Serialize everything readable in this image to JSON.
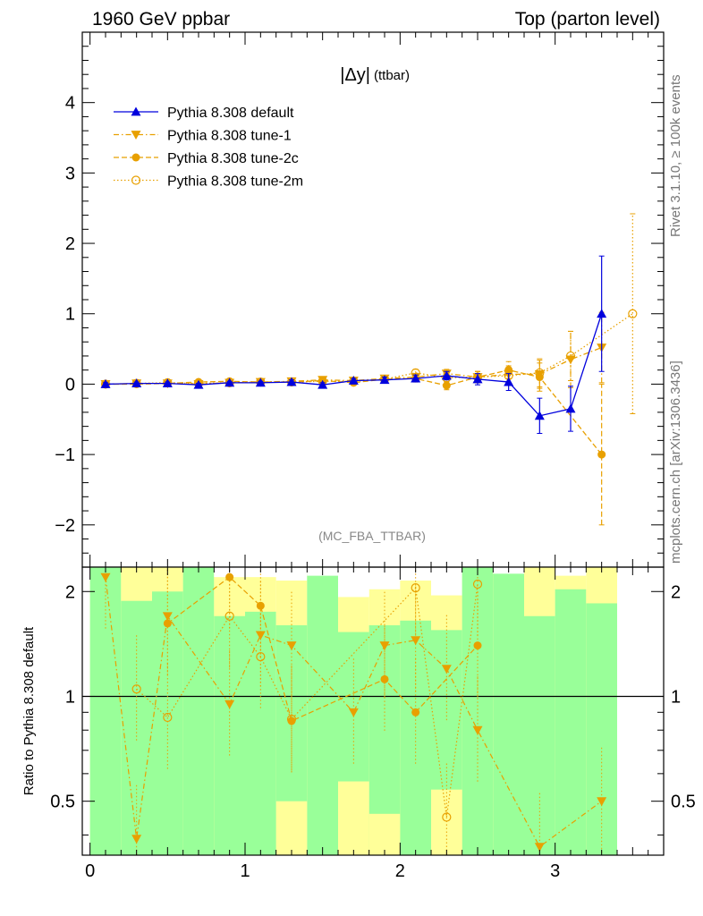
{
  "header": {
    "left": "1960 GeV ppbar",
    "right": "Top (parton level)"
  },
  "side": {
    "rivet": "Rivet 3.1.10, ≥ 100k events",
    "mcplots": "mcplots.cern.ch [arXiv:1306.3436]"
  },
  "analysis_tag": "(MC_FBA_TTBAR)",
  "plot_title": {
    "main": "|Δy|",
    "sub": "(ttbar)"
  },
  "colors": {
    "default": "#0000dd",
    "tunes": "#e8a000",
    "band_green": "#99ff99",
    "band_yellow": "#ffff99"
  },
  "chart_data": [
    {
      "type": "line",
      "panel": "main",
      "xlim": [
        -0.05,
        3.7
      ],
      "ylim": [
        -2.6,
        5.0
      ],
      "yticks": [
        -2,
        -1,
        0,
        1,
        2,
        3,
        4
      ],
      "ytick_labels": [
        "−2",
        "−1",
        "0",
        "1",
        "2",
        "3",
        "4"
      ],
      "legend_position": "top-left",
      "series": [
        {
          "name": "Pythia 8.308 default",
          "style": "solid",
          "marker": "triangle-up",
          "x": [
            0.1,
            0.3,
            0.5,
            0.7,
            0.9,
            1.1,
            1.3,
            1.5,
            1.7,
            1.9,
            2.1,
            2.3,
            2.5,
            2.7,
            2.9,
            3.1,
            3.3
          ],
          "y": [
            0.0,
            0.01,
            0.01,
            -0.01,
            0.02,
            0.02,
            0.03,
            -0.01,
            0.05,
            0.06,
            0.08,
            0.12,
            0.07,
            0.03,
            -0.45,
            -0.35,
            1.0
          ],
          "err": [
            0.02,
            0.02,
            0.02,
            0.02,
            0.02,
            0.02,
            0.03,
            0.03,
            0.03,
            0.04,
            0.05,
            0.06,
            0.08,
            0.12,
            0.25,
            0.32,
            0.82
          ]
        },
        {
          "name": "Pythia 8.308 tune-1",
          "style": "dashdot",
          "marker": "triangle-down",
          "x": [
            0.1,
            0.3,
            0.5,
            0.7,
            0.9,
            1.1,
            1.3,
            1.5,
            1.7,
            1.9,
            2.1,
            2.3,
            2.5,
            2.7,
            2.9,
            3.1,
            3.3
          ],
          "y": [
            0.0,
            0.01,
            0.01,
            0.0,
            0.02,
            0.03,
            0.04,
            0.06,
            0.05,
            0.08,
            0.1,
            0.15,
            0.1,
            0.14,
            0.14,
            0.35,
            0.52
          ],
          "err": [
            0.02,
            0.02,
            0.02,
            0.02,
            0.02,
            0.02,
            0.03,
            0.03,
            0.03,
            0.04,
            0.05,
            0.06,
            0.08,
            0.12,
            0.2,
            0.4,
            0.5
          ]
        },
        {
          "name": "Pythia 8.308 tune-2c",
          "style": "dashed",
          "marker": "circle",
          "x": [
            0.1,
            0.3,
            0.5,
            0.7,
            0.9,
            1.1,
            1.3,
            1.5,
            1.7,
            1.9,
            2.1,
            2.3,
            2.5,
            2.7,
            2.9,
            3.3
          ],
          "y": [
            0.0,
            0.0,
            0.01,
            0.03,
            0.04,
            0.03,
            0.03,
            0.05,
            0.02,
            0.07,
            0.08,
            -0.02,
            0.1,
            0.2,
            0.1,
            -1.0
          ],
          "err": [
            0.02,
            0.02,
            0.02,
            0.02,
            0.02,
            0.02,
            0.03,
            0.03,
            0.03,
            0.04,
            0.05,
            0.06,
            0.08,
            0.12,
            0.2,
            1.0
          ]
        },
        {
          "name": "Pythia 8.308 tune-2m",
          "style": "dotted",
          "marker": "open-circle",
          "x": [
            0.1,
            0.3,
            0.5,
            0.7,
            0.9,
            1.1,
            1.3,
            1.5,
            1.7,
            1.9,
            2.1,
            2.3,
            2.5,
            2.7,
            2.9,
            3.1,
            3.5
          ],
          "y": [
            0.0,
            0.01,
            0.02,
            0.01,
            0.02,
            0.03,
            0.03,
            0.04,
            0.04,
            0.07,
            0.16,
            0.09,
            0.1,
            0.12,
            0.16,
            0.4,
            1.0
          ],
          "err": [
            0.02,
            0.02,
            0.02,
            0.02,
            0.02,
            0.02,
            0.03,
            0.03,
            0.03,
            0.04,
            0.05,
            0.06,
            0.08,
            0.12,
            0.2,
            0.35,
            1.42
          ]
        }
      ]
    },
    {
      "type": "line",
      "panel": "ratio",
      "ylabel": "Ratio to Pythia 8.308 default",
      "xlim": [
        -0.05,
        3.7
      ],
      "ylim": [
        0.35,
        2.35
      ],
      "log_y": true,
      "xticks": [
        0,
        1,
        2,
        3
      ],
      "xtick_labels": [
        "0",
        "1",
        "2",
        "3"
      ],
      "yticks": [
        0.5,
        1,
        2
      ],
      "ytick_labels": [
        "0.5",
        "1",
        "2"
      ],
      "reference_line": 1,
      "bands": {
        "x_edges": [
          0.0,
          0.2,
          0.4,
          0.6,
          0.8,
          1.0,
          1.2,
          1.4,
          1.6,
          1.8,
          2.0,
          2.2,
          2.4,
          2.6,
          2.8,
          3.0,
          3.2,
          3.4
        ],
        "green": [
          [
            0.35,
            2.35
          ],
          [
            0.35,
            1.88
          ],
          [
            0.35,
            2.0
          ],
          [
            0.35,
            2.35
          ],
          [
            0.35,
            1.7
          ],
          [
            0.35,
            1.75
          ],
          [
            0.35,
            1.6
          ],
          [
            0.35,
            2.35
          ],
          [
            0.35,
            1.53
          ],
          [
            0.35,
            1.6
          ],
          [
            0.35,
            1.65
          ],
          [
            0.35,
            1.55
          ],
          [
            0.35,
            2.35
          ],
          [
            0.35,
            2.35
          ],
          [
            0.35,
            1.7
          ],
          [
            0.35,
            2.03
          ],
          [
            0.35,
            1.85
          ]
        ],
        "yellow": [
          [
            0.35,
            2.35
          ],
          [
            0.35,
            2.35
          ],
          [
            0.35,
            2.35
          ],
          [
            0.35,
            2.35
          ],
          [
            0.35,
            2.35
          ],
          [
            0.35,
            2.2
          ],
          [
            0.35,
            2.15
          ],
          [
            0.35,
            2.35
          ],
          [
            0.35,
            1.93
          ],
          [
            0.35,
            2.03
          ],
          [
            0.35,
            2.15
          ],
          [
            0.35,
            1.95
          ],
          [
            0.35,
            2.35
          ],
          [
            0.35,
            2.35
          ],
          [
            0.35,
            2.35
          ],
          [
            0.35,
            2.35
          ],
          [
            0.35,
            2.35
          ]
        ],
        "green_gaps": [
          [
            1.2,
            1.4,
            0.35,
            0.5
          ],
          [
            1.6,
            1.8,
            0.35,
            0.57
          ],
          [
            1.8,
            2.0,
            0.35,
            0.46
          ],
          [
            2.2,
            2.4,
            0.35,
            0.54
          ]
        ],
        "yellow_gaps": [
          [
            0.8,
            1.0,
            2.2,
            2.35
          ],
          [
            1.4,
            1.6,
            2.22,
            2.35
          ],
          [
            1.6,
            1.8,
            1.93,
            2.35
          ],
          [
            2.6,
            2.8,
            2.25,
            2.35
          ],
          [
            3.0,
            3.2,
            2.22,
            2.35
          ]
        ]
      },
      "series": [
        {
          "name": "Pythia 8.308 tune-1",
          "style": "dashdot",
          "marker": "triangle-down",
          "x": [
            0.1,
            0.3,
            0.5,
            0.9,
            1.1,
            1.3,
            1.7,
            1.9,
            2.1,
            2.3,
            2.5,
            2.9,
            3.3
          ],
          "y": [
            2.2,
            0.39,
            1.7,
            0.95,
            1.5,
            1.4,
            0.9,
            1.4,
            1.45,
            1.2,
            0.8,
            0.37,
            0.5
          ]
        },
        {
          "name": "Pythia 8.308 tune-2c",
          "style": "dashed",
          "marker": "circle",
          "x": [
            0.5,
            0.9,
            1.1,
            1.3,
            1.9,
            2.1,
            2.5
          ],
          "y": [
            1.62,
            2.2,
            1.82,
            0.85,
            1.12,
            0.9,
            1.4
          ]
        },
        {
          "name": "Pythia 8.308 tune-2m",
          "style": "dotted",
          "marker": "open-circle",
          "x": [
            0.3,
            0.5,
            0.9,
            1.1,
            1.3,
            2.1,
            2.3,
            2.5
          ],
          "y": [
            1.05,
            0.87,
            1.7,
            1.3,
            0.86,
            2.05,
            0.45,
            2.1
          ]
        }
      ]
    }
  ]
}
